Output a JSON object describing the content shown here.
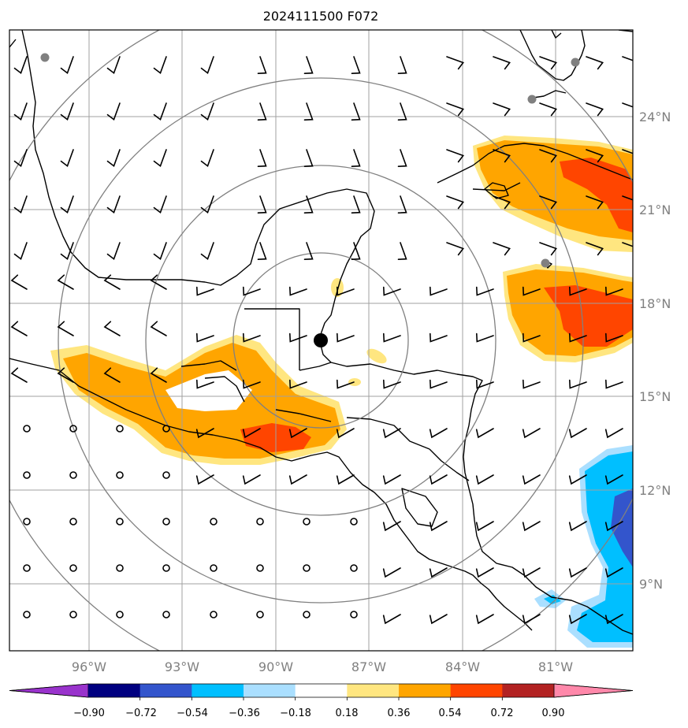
{
  "map": {
    "title": "2024111500 F072",
    "lon_labels": [
      "96°W",
      "93°W",
      "90°W",
      "87°W",
      "84°W",
      "81°W"
    ],
    "lat_labels": [
      "24°N",
      "21°N",
      "18°N",
      "15°N",
      "12°N",
      "9°N"
    ],
    "center_marker": {
      "lon": -88.5,
      "lat": 16.9
    },
    "range_rings": 4,
    "cities": [
      "Tampico area",
      "Miami area",
      "Key West area",
      "Grand Cayman area"
    ],
    "colors": {
      "land_line": "#000000",
      "grid": "#a0a0a0",
      "ring": "#808080",
      "city": "#808080"
    }
  },
  "colorbar": {
    "ticks": [
      "−0.90",
      "−0.72",
      "−0.54",
      "−0.36",
      "−0.18",
      "0.18",
      "0.36",
      "0.54",
      "0.72",
      "0.90"
    ],
    "colors": [
      "#9933cc",
      "#000080",
      "#3355cc",
      "#00bfff",
      "#aadfff",
      "#ffffff",
      "#ffe680",
      "#ffa500",
      "#ff4500",
      "#b22222",
      "#ff88aa"
    ]
  }
}
